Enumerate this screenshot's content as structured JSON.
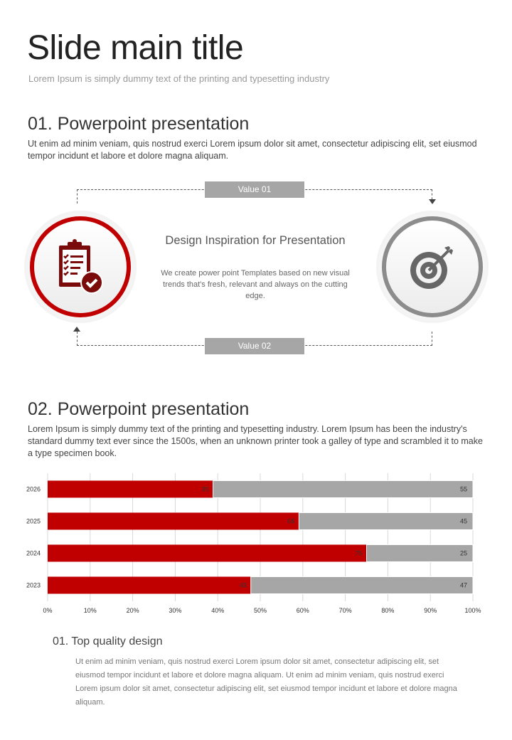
{
  "title": "Slide main title",
  "subtitle": "Lorem Ipsum is simply dummy text of the printing and typesetting industry",
  "section1": {
    "heading": "01. Powerpoint presentation",
    "text": "Ut enim ad minim veniam, quis nostrud exerci  Lorem ipsum dolor sit amet, consectetur adipiscing elit, set eiusmod tempor incidunt et labore et dolore magna aliquam."
  },
  "diagram": {
    "value1": "Value 01",
    "value2": "Value 02",
    "center_title": "Design Inspiration for Presentation",
    "center_text": "We create power point Templates based on new visual trends that's fresh, relevant and always on the cutting edge.",
    "left_icon": "clipboard-check-icon",
    "right_icon": "target-arrow-icon",
    "colors": {
      "red": "#c00000",
      "darkred": "#7b0a0a",
      "gray": "#808080"
    }
  },
  "section2": {
    "heading": "02. Powerpoint presentation",
    "text": "Lorem Ipsum is simply dummy text of the printing and typesetting industry. Lorem Ipsum has been the industry's standard dummy text ever since the 1500s, when an unknown printer took a galley of type and scrambled it to make a type specimen book."
  },
  "chart_data": {
    "type": "bar",
    "orientation": "horizontal",
    "stacked": "100%",
    "categories": [
      "2026",
      "2025",
      "2024",
      "2023"
    ],
    "series": [
      {
        "values": [
          35,
          65,
          75,
          43
        ],
        "color": "#c00000"
      },
      {
        "values": [
          55,
          45,
          25,
          47
        ],
        "color": "#a6a6a6"
      }
    ],
    "xticks": [
      "0%",
      "10%",
      "20%",
      "30%",
      "40%",
      "50%",
      "60%",
      "70%",
      "80%",
      "90%",
      "100%"
    ],
    "xlim": [
      0,
      100
    ],
    "grid": true
  },
  "section3": {
    "heading": "01. Top quality design",
    "text": "Ut enim ad minim veniam, quis nostrud exerci  Lorem ipsum dolor sit amet, consectetur adipiscing elit, set eiusmod tempor incidunt et labore et dolore magna aliquam. Ut enim ad minim veniam, quis nostrud exerci Lorem ipsum dolor sit amet, consectetur adipiscing elit, set eiusmod tempor incidunt et labore et dolore magna aliquam."
  }
}
